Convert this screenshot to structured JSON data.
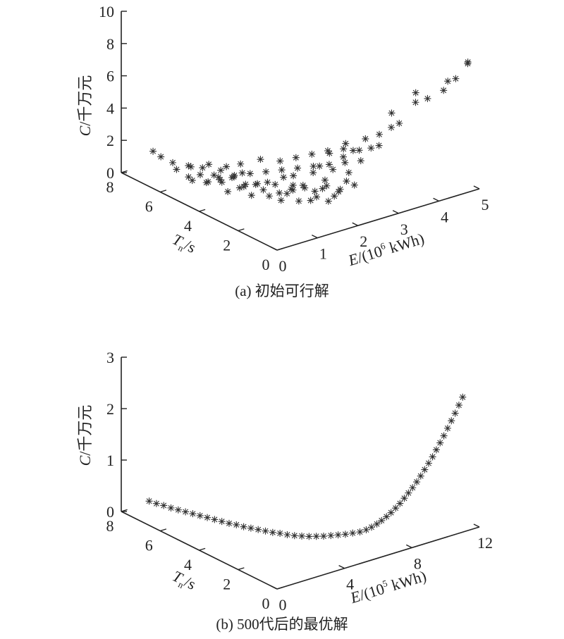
{
  "chart_data": [
    {
      "type": "scatter",
      "subtype": "3d-scatter",
      "caption": "(a) 初始可行解",
      "axes": {
        "z": {
          "label_var": "C",
          "label_unit": "/千万元",
          "range": [
            0,
            10
          ],
          "ticks": [
            "0",
            "2",
            "4",
            "6",
            "8",
            "10"
          ]
        },
        "t": {
          "label_var": "T",
          "label_sub": "n",
          "label_unit": "/s",
          "range": [
            0,
            8
          ],
          "ticks": [
            "0",
            "2",
            "4",
            "6",
            "8"
          ]
        },
        "e": {
          "label_var": "E",
          "label_unit_pre": "/(10",
          "label_exp": "6",
          "label_unit_post": " kWh)",
          "range": [
            0,
            5
          ],
          "ticks": [
            "0",
            "1",
            "2",
            "3",
            "4",
            "5"
          ]
        }
      },
      "marker": "asterisk",
      "points_e_t_c": [
        [
          0.4,
          7.2,
          1.5
        ],
        [
          0.45,
          6.9,
          1.3
        ],
        [
          0.5,
          6.2,
          0.9
        ],
        [
          0.55,
          6.5,
          1.1
        ],
        [
          0.6,
          5.6,
          0.5
        ],
        [
          0.65,
          5.9,
          1.2
        ],
        [
          0.7,
          5.4,
          0.9
        ],
        [
          0.75,
          5.1,
          0.6
        ],
        [
          0.8,
          4.9,
          1.1
        ],
        [
          0.85,
          4.6,
          0.8
        ],
        [
          0.9,
          4.4,
          0.3
        ],
        [
          0.95,
          4.2,
          1.3
        ],
        [
          1.0,
          4.0,
          0.7
        ],
        [
          1.05,
          3.8,
          1.0
        ],
        [
          1.1,
          3.6,
          0.4
        ],
        [
          1.15,
          3.4,
          1.2
        ],
        [
          1.2,
          3.2,
          0.9
        ],
        [
          1.25,
          3.0,
          0.6
        ],
        [
          1.3,
          2.8,
          1.4
        ],
        [
          1.35,
          2.6,
          0.5
        ],
        [
          1.4,
          2.4,
          1.0
        ],
        [
          1.45,
          2.2,
          1.3
        ],
        [
          1.5,
          2.0,
          0.7
        ],
        [
          1.55,
          1.8,
          1.6
        ],
        [
          1.6,
          1.6,
          0.9
        ],
        [
          1.65,
          1.4,
          1.2
        ],
        [
          1.7,
          1.2,
          1.8
        ],
        [
          1.75,
          1.0,
          1.1
        ],
        [
          1.8,
          0.8,
          1.5
        ],
        [
          1.85,
          0.6,
          2.0
        ],
        [
          0.7,
          6.0,
          0.4
        ],
        [
          0.9,
          5.5,
          0.2
        ],
        [
          1.0,
          5.0,
          0.6
        ],
        [
          1.1,
          4.6,
          0.9
        ],
        [
          1.2,
          4.2,
          0.5
        ],
        [
          1.3,
          3.8,
          0.8
        ],
        [
          1.4,
          3.4,
          1.1
        ],
        [
          1.5,
          3.0,
          0.6
        ],
        [
          1.6,
          2.6,
          1.0
        ],
        [
          1.7,
          2.2,
          1.4
        ],
        [
          1.8,
          1.8,
          1.2
        ],
        [
          1.9,
          1.4,
          1.7
        ],
        [
          2.0,
          1.0,
          1.5
        ],
        [
          2.1,
          0.8,
          2.2
        ],
        [
          2.2,
          0.6,
          2.0
        ],
        [
          1.2,
          5.5,
          0.3
        ],
        [
          1.35,
          5.0,
          0.6
        ],
        [
          1.5,
          4.5,
          0.9
        ],
        [
          1.65,
          4.0,
          1.2
        ],
        [
          1.8,
          3.5,
          1.5
        ],
        [
          1.95,
          3.0,
          1.8
        ],
        [
          2.1,
          2.5,
          2.1
        ],
        [
          2.25,
          2.0,
          2.4
        ],
        [
          2.4,
          1.5,
          2.7
        ],
        [
          2.55,
          1.0,
          3.0
        ],
        [
          1.0,
          6.5,
          0.5
        ],
        [
          1.2,
          6.0,
          0.8
        ],
        [
          1.4,
          5.8,
          0.4
        ],
        [
          1.6,
          5.2,
          1.0
        ],
        [
          1.9,
          4.8,
          1.3
        ],
        [
          2.0,
          4.0,
          1.6
        ],
        [
          2.2,
          3.6,
          1.9
        ],
        [
          2.4,
          3.2,
          2.2
        ],
        [
          2.6,
          2.8,
          2.5
        ],
        [
          2.7,
          2.2,
          2.9
        ],
        [
          2.8,
          1.6,
          3.1
        ],
        [
          2.9,
          1.2,
          3.4
        ],
        [
          3.0,
          1.0,
          3.6
        ],
        [
          2.6,
          2.0,
          2.6
        ],
        [
          2.3,
          2.6,
          1.9
        ],
        [
          1.7,
          3.2,
          1.3
        ],
        [
          1.45,
          4.8,
          0.8
        ],
        [
          1.25,
          5.2,
          1.1
        ],
        [
          0.95,
          5.8,
          0.9
        ],
        [
          2.05,
          1.8,
          1.7
        ],
        [
          2.35,
          1.2,
          2.3
        ],
        [
          1.55,
          2.4,
          1.4
        ],
        [
          1.75,
          2.8,
          1.6
        ],
        [
          1.95,
          2.2,
          2.0
        ],
        [
          2.15,
          1.6,
          2.4
        ],
        [
          2.45,
          2.4,
          2.7
        ],
        [
          2.65,
          1.6,
          3.2
        ],
        [
          2.85,
          2.4,
          3.0
        ],
        [
          3.05,
          1.8,
          3.5
        ],
        [
          3.2,
          1.4,
          3.9
        ],
        [
          3.4,
          1.2,
          4.3
        ],
        [
          3.6,
          1.6,
          4.8
        ],
        [
          3.5,
          1.0,
          4.6
        ],
        [
          4.0,
          1.2,
          5.4
        ],
        [
          4.2,
          1.0,
          5.6
        ],
        [
          4.1,
          1.4,
          5.8
        ],
        [
          4.5,
          0.8,
          6.0
        ],
        [
          4.7,
          1.0,
          6.3
        ],
        [
          4.8,
          0.8,
          6.5
        ],
        [
          5.0,
          0.6,
          7.4
        ],
        [
          5.1,
          0.8,
          7.3
        ]
      ]
    },
    {
      "type": "scatter",
      "subtype": "3d-scatter",
      "caption": "(b) 500代后的最优解",
      "axes": {
        "z": {
          "label_var": "C",
          "label_unit": "/千万元",
          "range": [
            0,
            3
          ],
          "ticks": [
            "0",
            "1",
            "2",
            "3"
          ]
        },
        "t": {
          "label_var": "T",
          "label_sub": "n",
          "label_unit": "/s",
          "range": [
            0,
            8
          ],
          "ticks": [
            "0",
            "2",
            "4",
            "6",
            "8"
          ]
        },
        "e": {
          "label_var": "E",
          "label_unit_pre": "/(10",
          "label_exp": "5",
          "label_unit_post": " kWh)",
          "range": [
            0,
            12
          ],
          "ticks": [
            "0",
            "4",
            "8",
            "12"
          ]
        }
      },
      "marker": "asterisk",
      "points_e_t_c": [
        [
          0.5,
          7.0,
          0.34
        ],
        [
          0.7,
          6.8,
          0.31
        ],
        [
          0.9,
          6.6,
          0.29
        ],
        [
          1.1,
          6.4,
          0.26
        ],
        [
          1.3,
          6.2,
          0.24
        ],
        [
          1.5,
          6.0,
          0.22
        ],
        [
          1.7,
          5.8,
          0.2
        ],
        [
          1.9,
          5.6,
          0.18
        ],
        [
          2.1,
          5.4,
          0.16
        ],
        [
          2.3,
          5.2,
          0.14
        ],
        [
          2.5,
          5.0,
          0.12
        ],
        [
          2.7,
          4.8,
          0.1
        ],
        [
          2.9,
          4.6,
          0.09
        ],
        [
          3.1,
          4.4,
          0.07
        ],
        [
          3.3,
          4.2,
          0.06
        ],
        [
          3.5,
          4.0,
          0.05
        ],
        [
          3.7,
          3.8,
          0.04
        ],
        [
          3.9,
          3.6,
          0.03
        ],
        [
          4.1,
          3.4,
          0.03
        ],
        [
          4.3,
          3.2,
          0.02
        ],
        [
          4.5,
          3.0,
          0.02
        ],
        [
          4.7,
          2.8,
          0.03
        ],
        [
          4.9,
          2.6,
          0.04
        ],
        [
          5.1,
          2.4,
          0.06
        ],
        [
          5.3,
          2.2,
          0.08
        ],
        [
          5.5,
          2.0,
          0.11
        ],
        [
          5.7,
          1.8,
          0.14
        ],
        [
          5.9,
          1.6,
          0.17
        ],
        [
          6.1,
          1.4,
          0.21
        ],
        [
          6.3,
          1.2,
          0.25
        ],
        [
          6.5,
          1.05,
          0.3
        ],
        [
          6.7,
          0.95,
          0.35
        ],
        [
          6.9,
          0.85,
          0.41
        ],
        [
          7.1,
          0.78,
          0.47
        ],
        [
          7.3,
          0.7,
          0.54
        ],
        [
          7.5,
          0.64,
          0.61
        ],
        [
          7.7,
          0.58,
          0.69
        ],
        [
          7.9,
          0.53,
          0.77
        ],
        [
          8.1,
          0.48,
          0.86
        ],
        [
          8.3,
          0.44,
          0.95
        ],
        [
          8.5,
          0.4,
          1.04
        ],
        [
          8.7,
          0.36,
          1.14
        ],
        [
          8.9,
          0.33,
          1.24
        ],
        [
          9.1,
          0.3,
          1.35
        ],
        [
          9.3,
          0.27,
          1.46
        ],
        [
          9.5,
          0.24,
          1.57
        ],
        [
          9.7,
          0.22,
          1.69
        ],
        [
          9.9,
          0.2,
          1.81
        ],
        [
          10.1,
          0.18,
          1.93
        ],
        [
          10.3,
          0.16,
          2.06
        ],
        [
          10.5,
          0.14,
          2.19
        ],
        [
          10.7,
          0.12,
          2.32
        ],
        [
          10.9,
          0.1,
          2.46
        ],
        [
          11.1,
          0.08,
          2.6
        ]
      ]
    }
  ]
}
